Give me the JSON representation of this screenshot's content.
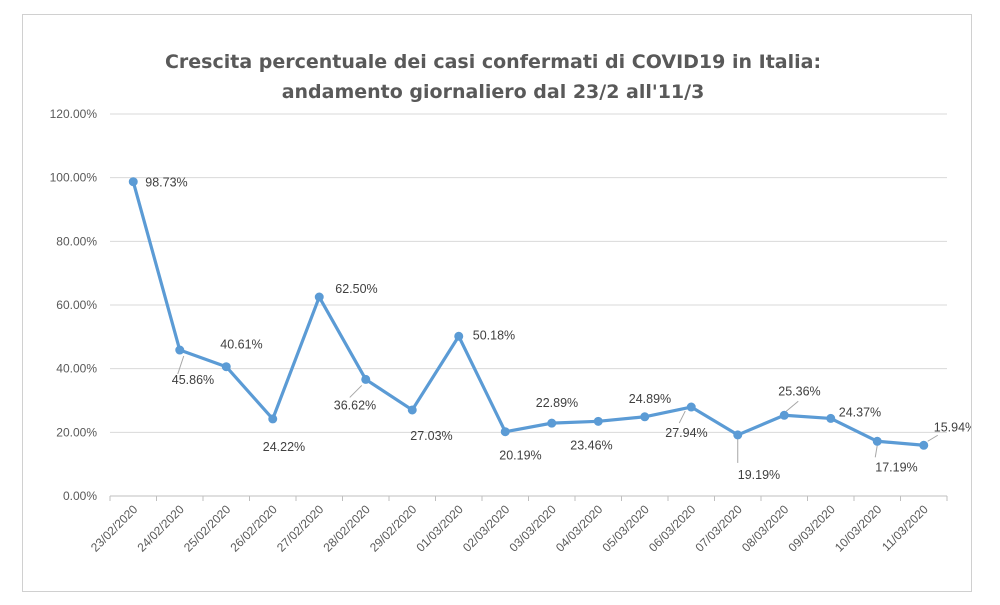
{
  "chart_data": {
    "type": "line",
    "title_line1": "Crescita percentuale dei casi confermati di COVID19 in Italia:",
    "title_line2": "andamento giornaliero dal 23/2 all'11/3",
    "xlabel": "",
    "ylabel": "",
    "ylim": [
      0,
      120
    ],
    "y_ticks": [
      0,
      20,
      40,
      60,
      80,
      100,
      120
    ],
    "y_tick_labels": [
      "0.00%",
      "20.00%",
      "40.00%",
      "60.00%",
      "80.00%",
      "100.00%",
      "120.00%"
    ],
    "grid": true,
    "legend": "none",
    "line_color": "#5b9bd5",
    "categories": [
      "23/02/2020",
      "24/02/2020",
      "25/02/2020",
      "26/02/2020",
      "27/02/2020",
      "28/02/2020",
      "29/02/2020",
      "01/03/2020",
      "02/03/2020",
      "03/03/2020",
      "04/03/2020",
      "05/03/2020",
      "06/03/2020",
      "07/03/2020",
      "08/03/2020",
      "09/03/2020",
      "10/03/2020",
      "11/03/2020"
    ],
    "values": [
      98.73,
      45.86,
      40.61,
      24.22,
      62.5,
      36.62,
      27.03,
      50.18,
      20.19,
      22.89,
      23.46,
      24.89,
      27.94,
      19.19,
      25.36,
      24.37,
      17.19,
      15.94
    ],
    "data_labels": [
      "98.73%",
      "45.86%",
      "40.61%",
      "24.22%",
      "62.50%",
      "36.62%",
      "27.03%",
      "50.18%",
      "20.19%",
      "22.89%",
      "23.46%",
      "24.89%",
      "27.94%",
      "19.19%",
      "25.36%",
      "24.37%",
      "17.19%",
      "15.94%"
    ]
  }
}
